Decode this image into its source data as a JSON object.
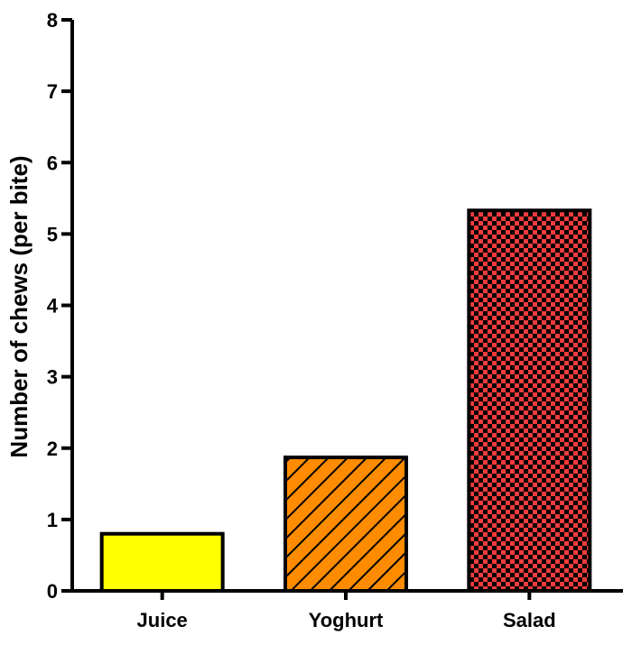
{
  "chart_data": {
    "type": "bar",
    "title": "",
    "xlabel": "",
    "ylabel": "Number of chews (per bite)",
    "ylim": [
      0,
      8
    ],
    "yticks": [
      0,
      1,
      2,
      3,
      4,
      5,
      6,
      7,
      8
    ],
    "categories": [
      "Juice",
      "Yoghurt",
      "Salad"
    ],
    "values": [
      0.8,
      1.87,
      5.33
    ],
    "bar_colors": [
      "#ffff00",
      "#ff8c00",
      "#f03c3c"
    ],
    "bar_fills": [
      "solid",
      "diagonal-hatch",
      "checkerboard"
    ],
    "grid": false,
    "legend": "none"
  }
}
